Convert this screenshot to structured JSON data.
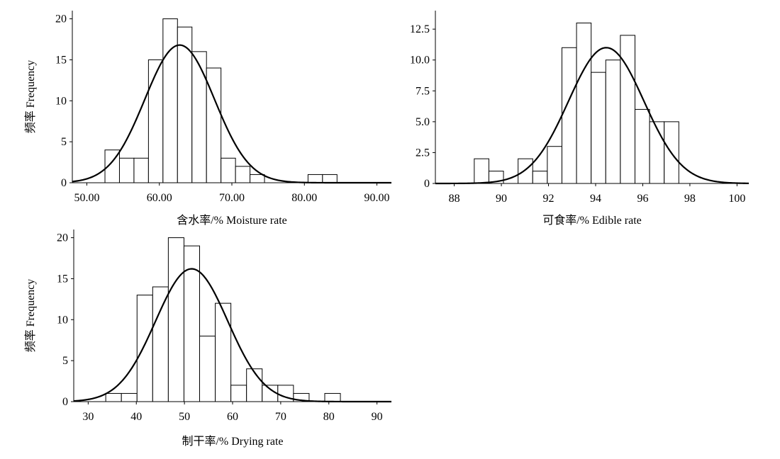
{
  "chart_data": [
    {
      "type": "bar",
      "title": "",
      "xlabel": "含水率/% Moisture rate",
      "ylabel": "频率 Frequency",
      "xlim": [
        48.0,
        92.0
      ],
      "ylim": [
        0,
        21
      ],
      "xticks": [
        50,
        60,
        70,
        80,
        90
      ],
      "xtick_labels": [
        "50.00",
        "60.00",
        "70.00",
        "80.00",
        "90.00"
      ],
      "yticks": [
        0,
        5,
        10,
        15,
        20
      ],
      "ytick_labels": [
        "0",
        "5",
        "10",
        "15",
        "20"
      ],
      "bin_width": 2,
      "bins": [
        {
          "start": 52.5,
          "count": 4
        },
        {
          "start": 54.5,
          "count": 3
        },
        {
          "start": 56.5,
          "count": 3
        },
        {
          "start": 58.5,
          "count": 15
        },
        {
          "start": 60.5,
          "count": 20
        },
        {
          "start": 62.5,
          "count": 19
        },
        {
          "start": 64.5,
          "count": 16
        },
        {
          "start": 66.5,
          "count": 14
        },
        {
          "start": 68.5,
          "count": 3
        },
        {
          "start": 70.5,
          "count": 2
        },
        {
          "start": 72.5,
          "count": 1
        },
        {
          "start": 80.5,
          "count": 1
        },
        {
          "start": 82.5,
          "count": 1
        }
      ],
      "normal_curve": {
        "mean": 62.8,
        "sd": 4.8,
        "peak": 16.8
      }
    },
    {
      "type": "bar",
      "title": "",
      "xlabel": "可食率/% Edible rate",
      "ylabel": "",
      "xlim": [
        87.2,
        100.5
      ],
      "ylim": [
        0,
        14
      ],
      "xticks": [
        88,
        90,
        92,
        94,
        96,
        98,
        100
      ],
      "xtick_labels": [
        "88",
        "90",
        "92",
        "94",
        "96",
        "98",
        "100"
      ],
      "yticks": [
        0,
        2.5,
        5.0,
        7.5,
        10.0,
        12.5
      ],
      "ytick_labels": [
        "0",
        "2.5",
        "5.0",
        "7.5",
        "10.0",
        "12.5"
      ],
      "bin_width": 0.62,
      "bins": [
        {
          "start": 88.85,
          "count": 2
        },
        {
          "start": 89.47,
          "count": 1
        },
        {
          "start": 90.71,
          "count": 2
        },
        {
          "start": 91.33,
          "count": 1
        },
        {
          "start": 91.95,
          "count": 3
        },
        {
          "start": 92.57,
          "count": 11
        },
        {
          "start": 93.19,
          "count": 13
        },
        {
          "start": 93.81,
          "count": 9
        },
        {
          "start": 94.43,
          "count": 10
        },
        {
          "start": 95.05,
          "count": 12
        },
        {
          "start": 95.67,
          "count": 6
        },
        {
          "start": 96.29,
          "count": 5
        },
        {
          "start": 96.91,
          "count": 5
        }
      ],
      "normal_curve": {
        "mean": 94.45,
        "sd": 1.6,
        "peak": 11.0
      }
    },
    {
      "type": "bar",
      "title": "",
      "xlabel": "制干率/% Drying rate",
      "ylabel": "频率 Frequency",
      "xlim": [
        27.0,
        93.0
      ],
      "ylim": [
        0,
        21
      ],
      "xticks": [
        30,
        40,
        50,
        60,
        70,
        80,
        90
      ],
      "xtick_labels": [
        "30",
        "40",
        "50",
        "60",
        "70",
        "80",
        "90"
      ],
      "yticks": [
        0,
        5,
        10,
        15,
        20
      ],
      "ytick_labels": [
        "0",
        "5",
        "10",
        "15",
        "20"
      ],
      "bin_width": 3.25,
      "bins": [
        {
          "start": 33.65,
          "count": 1
        },
        {
          "start": 36.9,
          "count": 1
        },
        {
          "start": 40.15,
          "count": 13
        },
        {
          "start": 43.4,
          "count": 14
        },
        {
          "start": 46.65,
          "count": 20
        },
        {
          "start": 49.9,
          "count": 19
        },
        {
          "start": 53.15,
          "count": 8
        },
        {
          "start": 56.4,
          "count": 12
        },
        {
          "start": 59.65,
          "count": 2
        },
        {
          "start": 62.9,
          "count": 4
        },
        {
          "start": 66.15,
          "count": 2
        },
        {
          "start": 69.4,
          "count": 2
        },
        {
          "start": 72.65,
          "count": 1
        },
        {
          "start": 79.15,
          "count": 1
        }
      ],
      "normal_curve": {
        "mean": 51.5,
        "sd": 7.5,
        "peak": 16.2
      }
    }
  ]
}
